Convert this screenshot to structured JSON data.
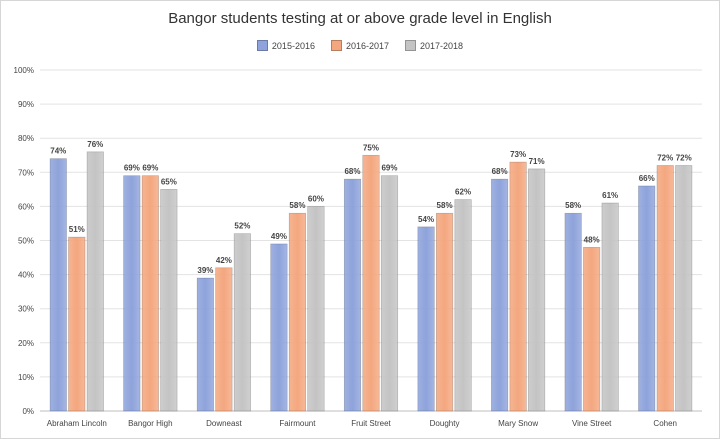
{
  "chart_data": {
    "type": "bar",
    "title": "Bangor students testing at or above grade level in English",
    "categories": [
      "Abraham Lincoln",
      "Bangor High",
      "Downeast",
      "Fairmount",
      "Fruit Street",
      "Doughty",
      "Mary Snow",
      "Vine Street",
      "Cohen"
    ],
    "series": [
      {
        "name": "2015-2016",
        "color": "#8ea3db",
        "values": [
          74,
          69,
          39,
          49,
          68,
          54,
          68,
          58,
          66
        ]
      },
      {
        "name": "2016-2017",
        "color": "#f4a77f",
        "values": [
          51,
          69,
          42,
          58,
          75,
          58,
          73,
          48,
          72
        ]
      },
      {
        "name": "2017-2018",
        "color": "#c4c4c4",
        "values": [
          76,
          65,
          52,
          60,
          69,
          62,
          71,
          61,
          72
        ]
      }
    ],
    "ylim": [
      0,
      100
    ],
    "yticks": [
      "0%",
      "10%",
      "20%",
      "30%",
      "40%",
      "50%",
      "60%",
      "70%",
      "80%",
      "90%",
      "100%"
    ],
    "grid": true,
    "legend_position": "top"
  }
}
